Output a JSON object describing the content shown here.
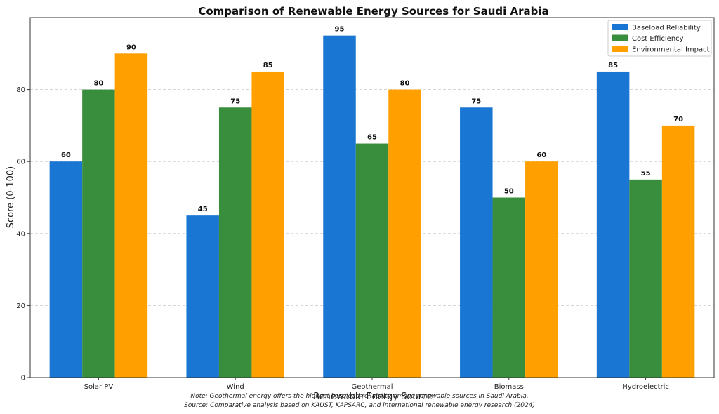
{
  "chart_data": {
    "type": "bar",
    "title": "Comparison of Renewable Energy Sources for Saudi Arabia",
    "xlabel": "Renewable Energy Source",
    "ylabel": "Score (0-100)",
    "categories": [
      "Solar PV",
      "Wind",
      "Geothermal",
      "Biomass",
      "Hydroelectric"
    ],
    "series": [
      {
        "name": "Baseload Reliability",
        "color": "#1976d2",
        "values": [
          60,
          45,
          95,
          75,
          85
        ]
      },
      {
        "name": "Cost Efficiency",
        "color": "#388e3c",
        "values": [
          80,
          75,
          65,
          50,
          55
        ]
      },
      {
        "name": "Environmental Impact",
        "color": "#ffa000",
        "values": [
          90,
          85,
          80,
          60,
          70
        ]
      }
    ],
    "ylim": [
      0,
      100
    ],
    "yticks": [
      0,
      20,
      40,
      60,
      80
    ],
    "grid": "y-dashed",
    "legend_position": "top-right",
    "notes": [
      "Note: Geothermal energy offers the highest baseload reliability among renewable sources in Saudi Arabia.",
      "Source: Comparative analysis based on KAUST, KAPSARC, and international renewable energy research (2024)"
    ]
  }
}
